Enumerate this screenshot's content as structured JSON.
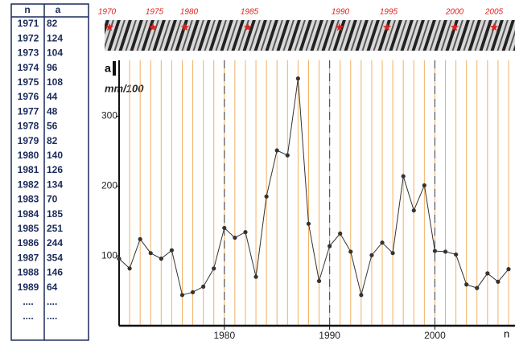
{
  "table": {
    "header": [
      "n",
      "a"
    ],
    "rows": [
      [
        "1971",
        "82"
      ],
      [
        "1972",
        "124"
      ],
      [
        "1973",
        "104"
      ],
      [
        "1974",
        "96"
      ],
      [
        "1975",
        "108"
      ],
      [
        "1976",
        "44"
      ],
      [
        "1977",
        "48"
      ],
      [
        "1978",
        "56"
      ],
      [
        "1979",
        "82"
      ],
      [
        "1980",
        "140"
      ],
      [
        "1981",
        "126"
      ],
      [
        "1982",
        "134"
      ],
      [
        "1983",
        "70"
      ],
      [
        "1984",
        "185"
      ],
      [
        "1985",
        "251"
      ],
      [
        "1986",
        "244"
      ],
      [
        "1987",
        "354"
      ],
      [
        "1988",
        "146"
      ],
      [
        "1989",
        "64"
      ],
      [
        "....",
        "...."
      ],
      [
        "....",
        "...."
      ]
    ]
  },
  "strip_labels": [
    "1970",
    "1975",
    "1980",
    "1985",
    "1990",
    "1995",
    "2000",
    "2005"
  ],
  "chart_data": {
    "type": "line",
    "y_label": "a",
    "y_unit": "mm/100",
    "x_label": "n",
    "x": [
      1970,
      1971,
      1972,
      1973,
      1974,
      1975,
      1976,
      1977,
      1978,
      1979,
      1980,
      1981,
      1982,
      1983,
      1984,
      1985,
      1986,
      1987,
      1988,
      1989,
      1990,
      1991,
      1992,
      1993,
      1994,
      1995,
      1996,
      1997,
      1998,
      1999,
      2000,
      2001,
      2002,
      2003,
      2004,
      2005,
      2006,
      2007
    ],
    "series": [
      {
        "name": "a",
        "color": "#333333",
        "values": [
          96,
          82,
          124,
          104,
          96,
          108,
          44,
          48,
          56,
          82,
          140,
          126,
          134,
          70,
          185,
          251,
          244,
          354,
          146,
          64,
          114,
          132,
          106,
          44,
          101,
          119,
          104,
          214,
          165,
          201,
          107,
          106,
          102,
          59,
          54,
          75,
          63,
          81
        ]
      }
    ],
    "xlim": [
      1970,
      2007
    ],
    "ylim": [
      0,
      380
    ],
    "xticks": [
      1980,
      1990,
      2000
    ],
    "yticks": [
      100,
      200,
      300
    ],
    "grid_color": "#f0b060"
  }
}
